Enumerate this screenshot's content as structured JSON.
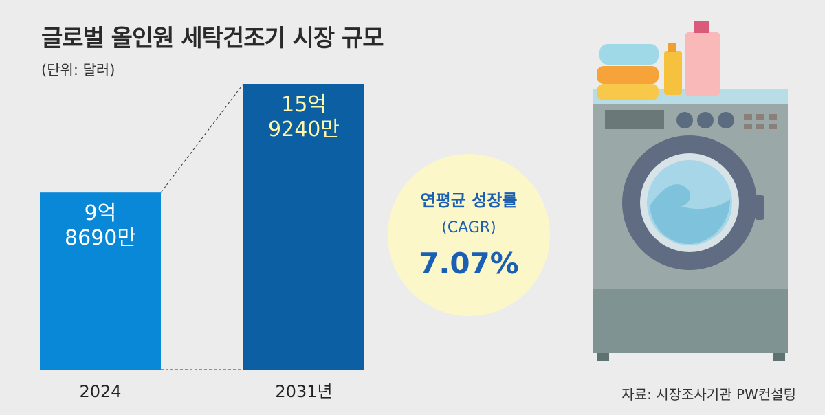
{
  "header": {
    "title": "글로벌 올인원 세탁건조기 시장 규모",
    "unit": "(단위: 달러)"
  },
  "chart_data": {
    "type": "bar",
    "title": "글로벌 올인원 세탁건조기 시장 규모",
    "unit": "달러",
    "categories": [
      "2024",
      "2031년"
    ],
    "values": [
      986900000,
      1592400000
    ],
    "value_labels": [
      [
        "9억",
        "8690만"
      ],
      [
        "15억",
        "9240만"
      ]
    ],
    "bar_colors": [
      "#0a88d8",
      "#0c5fa3"
    ],
    "ylim": [
      0,
      1592400000
    ],
    "annotation": {
      "title": "연평균 성장률",
      "subtitle": "(CAGR)",
      "value": "7.07%"
    }
  },
  "footer": {
    "source": "자료: 시장조사기관 PW컨설팅"
  }
}
